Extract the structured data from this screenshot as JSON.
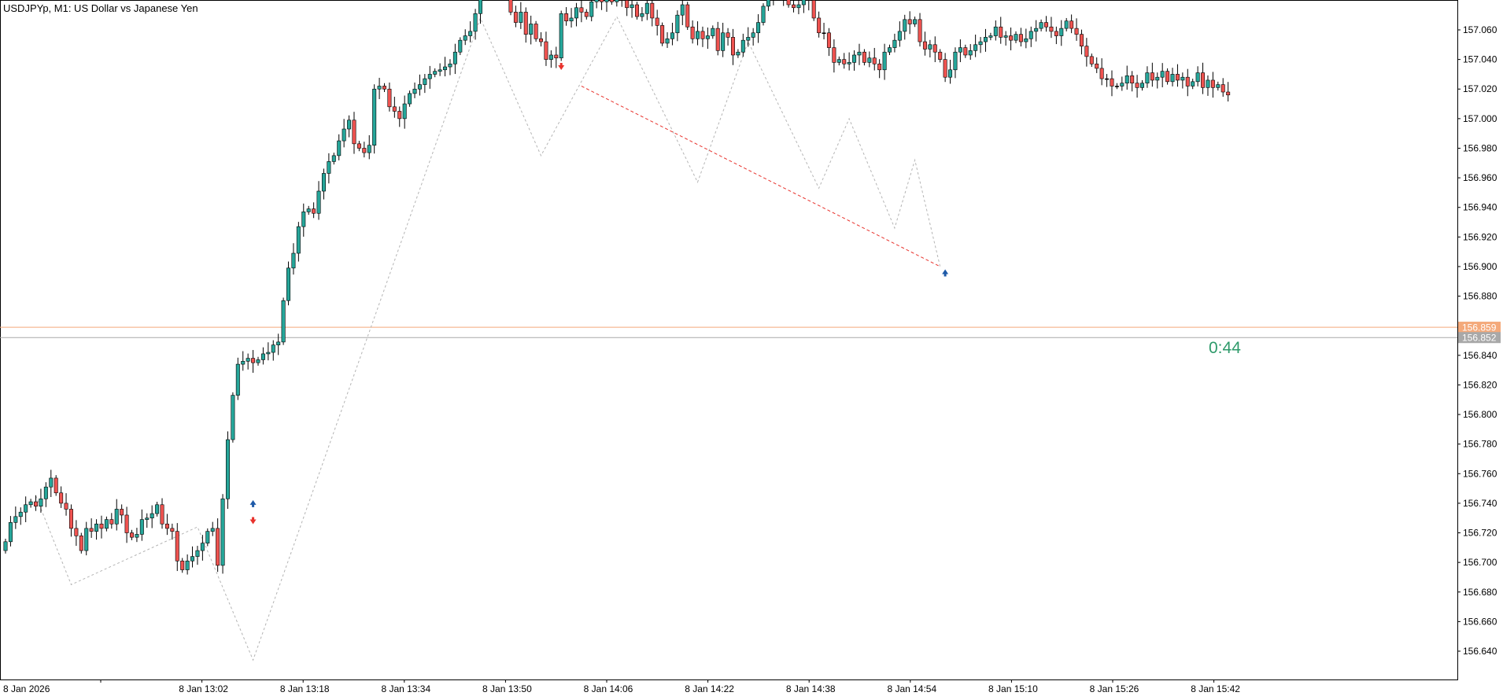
{
  "window": {
    "symbol": "USDJPYp",
    "timeframe": "M1",
    "description": "US Dollar vs Japanese Yen",
    "title": "USDJPYp, M1:  US Dollar vs Japanese Yen"
  },
  "colors": {
    "background": "#ffffff",
    "frame": "#000000",
    "bull": "#26a69a",
    "bear": "#ef5350",
    "wick": "#000000",
    "ask_line": "#f4a97a",
    "bid_line": "#a8a8a8",
    "zigzag": "#b4b4b4",
    "trendline": "#e8322c",
    "arrow_up": "#1e5aa8",
    "arrow_down": "#e8322c",
    "countdown": "#2e9a6a"
  },
  "price_tags": {
    "ask": "156.859",
    "bid": "156.852"
  },
  "countdown": "0:44",
  "chart_data": {
    "type": "candlestick",
    "timeframe": "M1",
    "x_tick_labels": [
      "8 Jan 2026",
      "8 Jan 13:02",
      "8 Jan 13:18",
      "8 Jan 13:34",
      "8 Jan 13:50",
      "8 Jan 14:06",
      "8 Jan 14:22",
      "8 Jan 14:38",
      "8 Jan 14:54",
      "8 Jan 15:10",
      "8 Jan 15:26",
      "8 Jan 15:42"
    ],
    "y_tick_labels": [
      "157.060",
      "157.040",
      "157.020",
      "157.000",
      "156.980",
      "156.960",
      "156.940",
      "156.920",
      "156.900",
      "156.880",
      "156.860",
      "156.840",
      "156.820",
      "156.800",
      "156.780",
      "156.760",
      "156.740",
      "156.720",
      "156.700",
      "156.680",
      "156.660",
      "156.640"
    ],
    "ylim": [
      156.6335,
      157.0717
    ],
    "grid": false,
    "ask_price": 156.859,
    "bid_price": 156.852,
    "open_price_start": 156.708,
    "close_moves": [
      0.006,
      0.013,
      0.004,
      0.003,
      0.005,
      0.002,
      -0.003,
      0.005,
      0.008,
      0.006,
      -0.01,
      -0.007,
      -0.004,
      -0.013,
      -0.005,
      -0.01,
      0.015,
      -0.002,
      0.005,
      -0.003,
      0.006,
      -0.003,
      0.01,
      -0.004,
      -0.012,
      -0.003,
      0.002,
      0.01,
      0.001,
      0.003,
      0.006,
      -0.013,
      -0.003,
      -0.002,
      -0.02,
      -0.006,
      0.006,
      0.003,
      0.004,
      0.005,
      0.008,
      0.002,
      -0.025,
      0.045,
      0.04,
      0.03,
      0.021,
      0.002,
      0.002,
      -0.003,
      0.002,
      0.004,
      0.001,
      0.005,
      0.002,
      0.028,
      0.022,
      0.01,
      0.018,
      0.01,
      0.002,
      -0.003,
      0.015,
      0.012,
      0.008,
      0.004,
      0.01,
      0.008,
      0.006,
      -0.016,
      -0.003,
      -0.003,
      0.005,
      0.038,
      0.002,
      -0.002,
      -0.012,
      -0.003,
      -0.005,
      0.01,
      0.007,
      0.003,
      0.003,
      0.004,
      0.003,
      0.002,
      0.001,
      0.002,
      0.002,
      0.008,
      0.008,
      0.003,
      0.003,
      0.012,
      0.015,
      -0.002,
      0.003,
      0.012,
      0.003,
      -0.01,
      -0.02,
      -0.007,
      0.007,
      -0.015,
      0.007,
      -0.01,
      -0.002,
      -0.012,
      0.003,
      -0.002,
      0.03,
      -0.005,
      0.002,
      0.007,
      -0.003,
      -0.003,
      0.01,
      0.005,
      -0.005,
      0.005,
      -0.005,
      0.003,
      -0.002,
      -0.005,
      0.002,
      -0.008,
      0.002,
      0.007,
      -0.01,
      -0.005,
      -0.012,
      0.003,
      0.004,
      0.012,
      0.007,
      -0.015,
      -0.008,
      0.005,
      -0.005,
      0.002,
      0.005,
      -0.015,
      0.012,
      -0.003,
      -0.012,
      0.002,
      0.008,
      0.002,
      0.003,
      0.007,
      0.011,
      0.005,
      0.005,
      0.005,
      -0.008,
      -0.006,
      -0.002,
      0.002,
      0.008,
      -0.005,
      -0.012,
      -0.01,
      0.0,
      -0.01,
      -0.01,
      0.002,
      -0.003,
      0.001,
      0.005,
      0.002,
      -0.007,
      0.003,
      -0.004,
      -0.004,
      0.012,
      0.003,
      0.005,
      0.006,
      0.008,
      -0.003,
      0.003,
      -0.015,
      -0.005,
      0.003,
      -0.005,
      -0.005,
      -0.012,
      0.005,
      0.012,
      0.003,
      -0.005,
      0.003,
      0.004,
      0.002,
      0.003,
      0.001,
      0.006,
      -0.007,
      0.001,
      -0.003,
      0.004,
      -0.005,
      0.002,
      0.005,
      0.002,
      0.004,
      -0.003,
      -0.003,
      -0.003,
      0.005,
      0.005,
      -0.005,
      -0.004,
      -0.008,
      -0.007,
      -0.005,
      -0.003,
      -0.007,
      0.0,
      -0.005,
      0.0,
      0.002,
      0.005,
      -0.005,
      -0.003,
      0.003,
      0.007,
      -0.005,
      0.002,
      0.004,
      -0.007,
      0.005,
      -0.004,
      0.002,
      -0.006,
      0.003,
      0.006,
      -0.01,
      0.005,
      -0.005,
      0.002,
      -0.005,
      -0.002
    ],
    "zigzag_points": [
      {
        "t": "12:46",
        "price": 156.745
      },
      {
        "t": "12:53",
        "price": 156.685
      },
      {
        "t": "13:18",
        "price": 156.724
      },
      {
        "t": "13:29",
        "price": 156.634
      },
      {
        "t": "14:14",
        "price": 157.068
      },
      {
        "t": "14:26",
        "price": 156.975
      },
      {
        "t": "14:41",
        "price": 157.069
      },
      {
        "t": "14:57",
        "price": 156.957
      },
      {
        "t": "15:07",
        "price": 157.052
      },
      {
        "t": "15:21",
        "price": 156.953
      },
      {
        "t": "15:27",
        "price": 157.0
      },
      {
        "t": "15:36",
        "price": 156.926
      },
      {
        "t": "15:40",
        "price": 156.972
      },
      {
        "t": "15:45",
        "price": 156.9
      }
    ],
    "trendline": {
      "from": {
        "t": "14:34",
        "price": 157.022
      },
      "to": {
        "t": "15:45",
        "price": 156.9
      }
    },
    "arrows": [
      {
        "t": "13:29",
        "price": 156.74,
        "direction": "up"
      },
      {
        "t": "13:29",
        "price": 156.728,
        "direction": "down"
      },
      {
        "t": "14:30",
        "price": 157.035,
        "direction": "down"
      },
      {
        "t": "15:46",
        "price": 156.896,
        "direction": "up"
      }
    ]
  }
}
